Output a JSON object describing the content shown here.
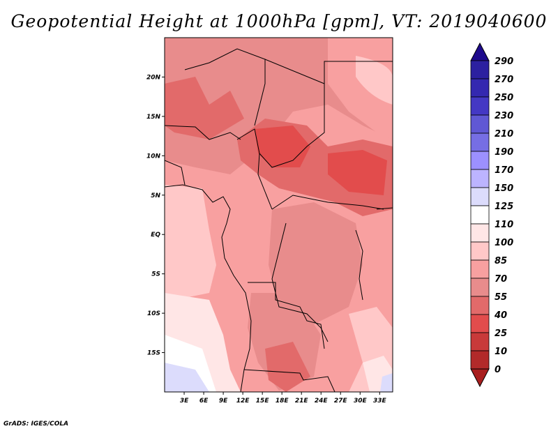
{
  "title": "Geopotential Height at 1000hPa [gpm], VT: 2019040600",
  "credit": "GrADS: IGES/COLA",
  "x_ticks": [
    "3E",
    "6E",
    "9E",
    "12E",
    "15E",
    "18E",
    "21E",
    "24E",
    "27E",
    "30E",
    "33E"
  ],
  "y_ticks": [
    "20N",
    "15N",
    "10N",
    "5N",
    "EQ",
    "5S",
    "10S",
    "15S"
  ],
  "colorbar": {
    "labels": [
      "290",
      "270",
      "250",
      "230",
      "210",
      "190",
      "170",
      "150",
      "125",
      "110",
      "100",
      "85",
      "70",
      "55",
      "40",
      "25",
      "10",
      "0"
    ],
    "colors": [
      "#1e0a8c",
      "#2c20a0",
      "#3428b0",
      "#4438c4",
      "#6058d4",
      "#766ee4",
      "#9c90ff",
      "#bcb4ff",
      "#dcdcfc",
      "#ffffff",
      "#ffe6e6",
      "#ffc8c8",
      "#f8a0a0",
      "#e88c8c",
      "#e26a6a",
      "#e24c4c",
      "#c83a3a",
      "#b22a2a",
      "#a81e1e"
    ]
  },
  "map": {
    "region": "Central Africa",
    "lon_range": [
      0,
      35
    ],
    "lat_range": [
      -20,
      25
    ]
  }
}
